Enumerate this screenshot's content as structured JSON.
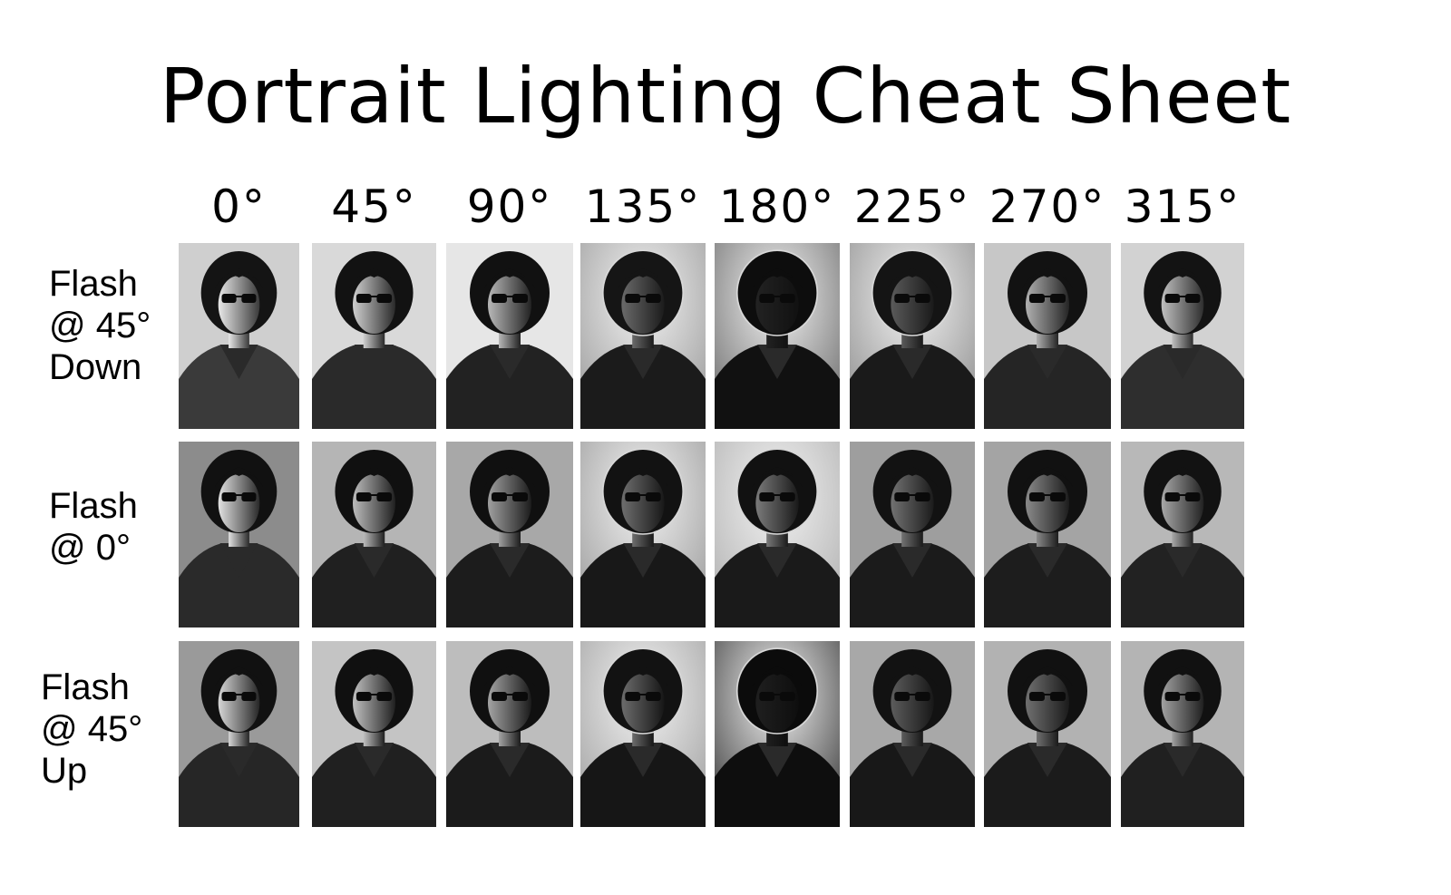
{
  "title": "Portrait Lighting Cheat Sheet",
  "columns": [
    "0°",
    "45°",
    "90°",
    "135°",
    "180°",
    "225°",
    "270°",
    "315°"
  ],
  "rows": [
    {
      "label_lines": [
        "Flash",
        "@ 45°",
        "Down"
      ]
    },
    {
      "label_lines": [
        "Flash",
        "@ 0°"
      ]
    },
    {
      "label_lines": [
        "Flash",
        "@ 45°",
        "Up"
      ]
    }
  ],
  "photos": [
    [
      {
        "bg": "#cfcfcf",
        "light": "#e8e8e8",
        "shadow": "#3a3a3a",
        "hair": "#141414",
        "face": "#c9c9c9",
        "rim": false
      },
      {
        "bg": "#d9d9d9",
        "light": "#cfcfcf",
        "shadow": "#2a2a2a",
        "hair": "#121212",
        "face": "#b5b5b5",
        "rim": false
      },
      {
        "bg": "#e6e6e6",
        "light": "#b8b8b8",
        "shadow": "#222222",
        "hair": "#111111",
        "face": "#8a8a8a",
        "rim": false
      },
      {
        "bg": "#9a9a9a",
        "light": "#6a6a6a",
        "shadow": "#1b1b1b",
        "hair": "#151515",
        "face": "#3c3c3c",
        "rim": true
      },
      {
        "bg": "#6b6b6b",
        "light": "#222222",
        "shadow": "#111111",
        "hair": "#0d0d0d",
        "face": "#1e1e1e",
        "rim": true
      },
      {
        "bg": "#8e8e8e",
        "light": "#5a5a5a",
        "shadow": "#1a1a1a",
        "hair": "#141414",
        "face": "#4a4a4a",
        "rim": true
      },
      {
        "bg": "#c7c7c7",
        "light": "#b0b0b0",
        "shadow": "#252525",
        "hair": "#121212",
        "face": "#9a9a9a",
        "rim": false
      },
      {
        "bg": "#d2d2d2",
        "light": "#c0c0c0",
        "shadow": "#2e2e2e",
        "hair": "#131313",
        "face": "#aaaaaa",
        "rim": false
      }
    ],
    [
      {
        "bg": "#8c8c8c",
        "light": "#e2e2e2",
        "shadow": "#2a2a2a",
        "hair": "#111111",
        "face": "#d4d4d4",
        "rim": false
      },
      {
        "bg": "#b5b5b5",
        "light": "#bcbcbc",
        "shadow": "#202020",
        "hair": "#101010",
        "face": "#a8a8a8",
        "rim": false
      },
      {
        "bg": "#a8a8a8",
        "light": "#a0a0a0",
        "shadow": "#1c1c1c",
        "hair": "#101010",
        "face": "#7e7e7e",
        "rim": false
      },
      {
        "bg": "#9a9a9a",
        "light": "#6e6e6e",
        "shadow": "#181818",
        "hair": "#121212",
        "face": "#555555",
        "rim": true
      },
      {
        "bg": "#b0b0b0",
        "light": "#7a7a7a",
        "shadow": "#1a1a1a",
        "hair": "#111111",
        "face": "#6a6a6a",
        "rim": true
      },
      {
        "bg": "#9e9e9e",
        "light": "#727272",
        "shadow": "#1b1b1b",
        "hair": "#121212",
        "face": "#606060",
        "rim": false
      },
      {
        "bg": "#a4a4a4",
        "light": "#8a8a8a",
        "shadow": "#1d1d1d",
        "hair": "#111111",
        "face": "#7a7a7a",
        "rim": false
      },
      {
        "bg": "#b8b8b8",
        "light": "#a8a8a8",
        "shadow": "#222222",
        "hair": "#121212",
        "face": "#959595",
        "rim": false
      }
    ],
    [
      {
        "bg": "#9a9a9a",
        "light": "#d6d6d6",
        "shadow": "#262626",
        "hair": "#111111",
        "face": "#bdbdbd",
        "rim": false
      },
      {
        "bg": "#c4c4c4",
        "light": "#c0c0c0",
        "shadow": "#202020",
        "hair": "#101010",
        "face": "#a6a6a6",
        "rim": false
      },
      {
        "bg": "#bdbdbd",
        "light": "#a4a4a4",
        "shadow": "#1b1b1b",
        "hair": "#101010",
        "face": "#7c7c7c",
        "rim": false
      },
      {
        "bg": "#a0a0a0",
        "light": "#6c6c6c",
        "shadow": "#161616",
        "hair": "#121212",
        "face": "#4e4e4e",
        "rim": true
      },
      {
        "bg": "#3a3a3a",
        "light": "#1f1f1f",
        "shadow": "#0e0e0e",
        "hair": "#0b0b0b",
        "face": "#151515",
        "rim": true
      },
      {
        "bg": "#a8a8a8",
        "light": "#5c5c5c",
        "shadow": "#181818",
        "hair": "#121212",
        "face": "#3e3e3e",
        "rim": false
      },
      {
        "bg": "#b2b2b2",
        "light": "#707070",
        "shadow": "#1b1b1b",
        "hair": "#111111",
        "face": "#555555",
        "rim": false
      },
      {
        "bg": "#b4b4b4",
        "light": "#a2a2a2",
        "shadow": "#202020",
        "hair": "#111111",
        "face": "#8e8e8e",
        "rim": false
      }
    ]
  ]
}
